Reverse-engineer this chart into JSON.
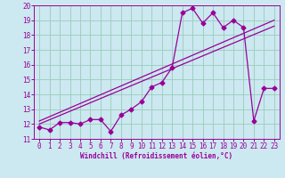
{
  "xlabel": "Windchill (Refroidissement éolien,°C)",
  "xlim": [
    -0.5,
    23.5
  ],
  "ylim": [
    11,
    20
  ],
  "xticks": [
    0,
    1,
    2,
    3,
    4,
    5,
    6,
    7,
    8,
    9,
    10,
    11,
    12,
    13,
    14,
    15,
    16,
    17,
    18,
    19,
    20,
    21,
    22,
    23
  ],
  "yticks": [
    11,
    12,
    13,
    14,
    15,
    16,
    17,
    18,
    19,
    20
  ],
  "bg_color": "#cce8f0",
  "grid_color": "#99ccbb",
  "line_color": "#990099",
  "line1_x": [
    0,
    1,
    2,
    3,
    4,
    5,
    6,
    7,
    8,
    9,
    10,
    11,
    12,
    13,
    14,
    15,
    16,
    17,
    18,
    19,
    20,
    21,
    22,
    23
  ],
  "line1_y": [
    11.8,
    11.6,
    12.1,
    12.1,
    12.0,
    12.3,
    12.3,
    11.5,
    12.6,
    13.0,
    13.5,
    14.5,
    14.8,
    15.8,
    19.5,
    19.8,
    18.8,
    19.5,
    18.5,
    19.0,
    18.5,
    12.2,
    14.4,
    14.4
  ],
  "line2_x": [
    0,
    23
  ],
  "line2_y": [
    12.0,
    18.6
  ],
  "line3_x": [
    0,
    23
  ],
  "line3_y": [
    12.2,
    19.0
  ],
  "lw": 0.9,
  "marker_size": 2.5,
  "xlabel_fontsize": 5.5,
  "tick_fontsize": 5.5
}
